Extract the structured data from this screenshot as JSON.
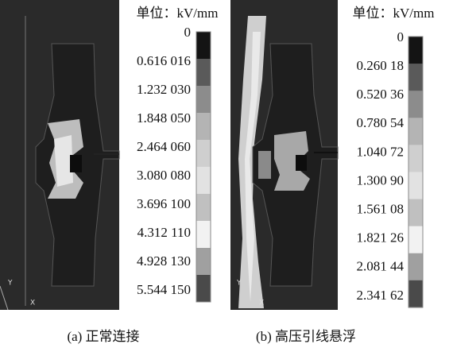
{
  "panels": [
    {
      "unit": "单位：kV/mm",
      "scale_labels": [
        "0",
        "0.616 016",
        "1.232 030",
        "1.848 050",
        "2.464 060",
        "3.080 080",
        "3.696 100",
        "4.312 110",
        "4.928 130",
        "5.544 150"
      ],
      "axis_labels": [
        "Y",
        "X"
      ],
      "caption": "(a) 正常连接"
    },
    {
      "unit": "单位：kV/mm",
      "scale_labels": [
        "0",
        "0.260 18",
        "0.520 36",
        "0.780 54",
        "1.040 72",
        "1.300 90",
        "1.561 08",
        "1.821 26",
        "2.081 44",
        "2.341 62"
      ],
      "axis_labels": [
        "Y",
        "X"
      ],
      "caption": "(b) 高压引线悬浮"
    }
  ]
}
